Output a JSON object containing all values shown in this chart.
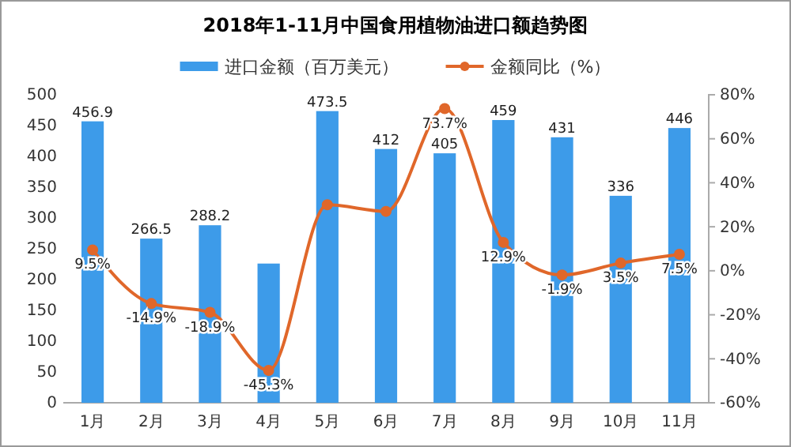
{
  "chart_data": {
    "type": "bar",
    "title": "2018年1-11月中国食用植物油进口额趋势图",
    "categories": [
      "1月",
      "2月",
      "3月",
      "4月",
      "5月",
      "6月",
      "7月",
      "8月",
      "9月",
      "10月",
      "11月"
    ],
    "series": [
      {
        "name": "进口金额（百万美元）",
        "color": "#3d9be9",
        "values": [
          456.9,
          266.5,
          288.2,
          226,
          473.5,
          412,
          405,
          459,
          431,
          336,
          446
        ],
        "value_labels": [
          "456.9",
          "266.5",
          "288.2",
          null,
          "473.5",
          "412",
          "405",
          "459",
          "431",
          "336",
          "446"
        ]
      },
      {
        "name": "金额同比（%）",
        "type": "line",
        "axis": "y2",
        "color": "#e0672a",
        "values": [
          9.5,
          -14.9,
          -18.9,
          -45.3,
          30,
          27,
          73.7,
          12.9,
          -1.9,
          3.5,
          7.5
        ],
        "value_labels": [
          "9.5%",
          "-14.9%",
          "-18.9%",
          "-45.3%",
          null,
          null,
          "73.7%",
          "12.9%",
          "-1.9%",
          "3.5%",
          "7.5%"
        ]
      }
    ],
    "ylim": [
      0,
      500
    ],
    "yticks": [
      0,
      50,
      100,
      150,
      200,
      250,
      300,
      350,
      400,
      450,
      500
    ],
    "y2lim": [
      -60,
      80
    ],
    "y2ticks": [
      {
        "value": -60,
        "label": "-60%"
      },
      {
        "value": -40,
        "label": "-40%"
      },
      {
        "value": -20,
        "label": "-20%"
      },
      {
        "value": 0,
        "label": "0%"
      },
      {
        "value": 20,
        "label": "20%"
      },
      {
        "value": 40,
        "label": "40%"
      },
      {
        "value": 60,
        "label": "60%"
      },
      {
        "value": 80,
        "label": "80%"
      }
    ],
    "legend": "top",
    "marker": "circle",
    "grid": false
  }
}
